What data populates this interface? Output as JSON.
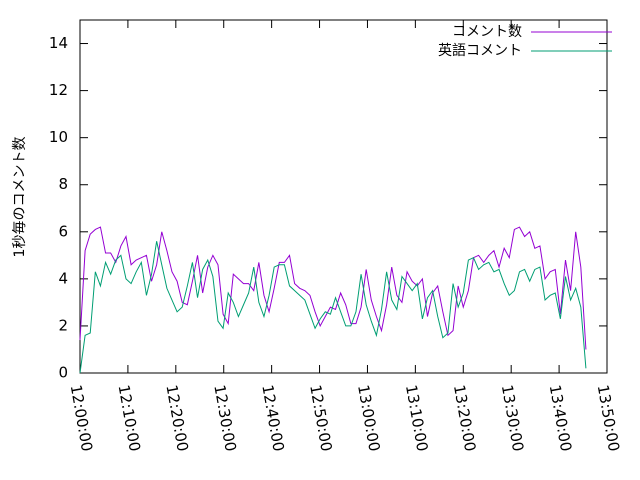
{
  "chart_data": {
    "type": "line",
    "y_label": "1秒毎のコメント数",
    "x": [
      "12:00:00",
      "12:01:04",
      "12:02:08",
      "12:03:12",
      "12:04:16",
      "12:05:20",
      "12:06:24",
      "12:07:28",
      "12:08:32",
      "12:09:36",
      "12:10:40",
      "12:11:44",
      "12:12:48",
      "12:13:52",
      "12:14:56",
      "12:16:00",
      "12:17:04",
      "12:18:08",
      "12:19:12",
      "12:20:16",
      "12:21:20",
      "12:22:24",
      "12:23:28",
      "12:24:32",
      "12:25:36",
      "12:26:40",
      "12:27:44",
      "12:28:48",
      "12:29:52",
      "12:30:56",
      "12:32:00",
      "12:33:04",
      "12:34:08",
      "12:35:12",
      "12:36:16",
      "12:37:20",
      "12:38:24",
      "12:39:28",
      "12:40:32",
      "12:41:36",
      "12:42:40",
      "12:43:44",
      "12:44:48",
      "12:45:52",
      "12:46:56",
      "12:48:00",
      "12:49:04",
      "12:50:08",
      "12:51:12",
      "12:52:16",
      "12:53:20",
      "12:54:24",
      "12:55:28",
      "12:56:32",
      "12:57:36",
      "12:58:40",
      "12:59:44",
      "13:00:48",
      "13:01:52",
      "13:02:56",
      "13:04:00",
      "13:05:04",
      "13:06:08",
      "13:07:12",
      "13:08:16",
      "13:09:20",
      "13:10:24",
      "13:11:28",
      "13:12:32",
      "13:13:36",
      "13:14:40",
      "13:15:44",
      "13:16:48",
      "13:17:52",
      "13:18:56",
      "13:20:00",
      "13:21:04",
      "13:22:08",
      "13:23:12",
      "13:24:16",
      "13:25:20",
      "13:26:24",
      "13:27:28",
      "13:28:32",
      "13:29:36",
      "13:30:40",
      "13:31:44",
      "13:32:48",
      "13:33:52",
      "13:34:56",
      "13:36:00",
      "13:37:04",
      "13:38:08",
      "13:39:12",
      "13:40:16",
      "13:41:20",
      "13:42:24",
      "13:43:28",
      "13:44:32",
      "13:45:36"
    ],
    "series": [
      {
        "name": "コメント数",
        "color": "#9400d3",
        "values": [
          1.4,
          5.2,
          5.9,
          6.1,
          6.2,
          5.1,
          5.1,
          4.7,
          5.4,
          5.8,
          4.6,
          4.8,
          4.9,
          5.0,
          3.9,
          4.6,
          6.0,
          5.2,
          4.3,
          3.9,
          3.0,
          2.9,
          3.9,
          5.0,
          3.4,
          4.5,
          5.0,
          4.6,
          2.5,
          2.1,
          4.2,
          4.0,
          3.8,
          3.8,
          3.5,
          4.7,
          3.3,
          2.6,
          3.6,
          4.7,
          4.7,
          5.0,
          3.8,
          3.6,
          3.5,
          3.3,
          2.6,
          2.0,
          2.4,
          2.8,
          2.7,
          3.4,
          2.9,
          2.1,
          2.1,
          2.8,
          4.4,
          3.1,
          2.4,
          1.8,
          2.9,
          4.5,
          3.3,
          3.0,
          4.3,
          3.9,
          3.7,
          4.0,
          2.4,
          3.4,
          3.7,
          2.6,
          1.6,
          1.8,
          3.7,
          2.8,
          3.5,
          4.9,
          5.0,
          4.7,
          5.0,
          5.2,
          4.5,
          5.3,
          4.9,
          6.1,
          6.2,
          5.8,
          6.0,
          5.3,
          5.4,
          4.0,
          4.3,
          4.4,
          2.5,
          4.8,
          3.5,
          6.0,
          4.5,
          1.0
        ]
      },
      {
        "name": "英語コメント",
        "color": "#009e73",
        "values": [
          0,
          1.6,
          1.7,
          4.3,
          3.7,
          4.7,
          4.2,
          4.8,
          5.0,
          4.0,
          3.8,
          4.3,
          4.7,
          3.3,
          4.2,
          5.6,
          4.6,
          3.6,
          3.1,
          2.6,
          2.8,
          3.7,
          4.7,
          3.2,
          4.4,
          4.8,
          4.1,
          2.2,
          1.9,
          3.4,
          3.0,
          2.4,
          2.9,
          3.4,
          4.5,
          3.0,
          2.4,
          3.3,
          4.5,
          4.6,
          4.6,
          3.7,
          3.5,
          3.3,
          3.1,
          2.5,
          1.9,
          2.3,
          2.6,
          2.5,
          3.2,
          2.6,
          2.0,
          2.0,
          2.6,
          4.2,
          2.9,
          2.2,
          1.6,
          2.7,
          4.3,
          3.1,
          2.7,
          4.1,
          3.8,
          3.5,
          3.8,
          2.3,
          3.2,
          3.5,
          2.4,
          1.5,
          1.7,
          3.8,
          2.8,
          3.4,
          4.8,
          4.9,
          4.4,
          4.6,
          4.7,
          4.3,
          4.4,
          3.8,
          3.3,
          3.5,
          4.3,
          4.4,
          3.9,
          4.4,
          4.5,
          3.1,
          3.3,
          3.4,
          2.3,
          4.1,
          3.1,
          3.6,
          2.8,
          0.2
        ]
      }
    ],
    "xlim": [
      "12:00:00",
      "13:50:00"
    ],
    "xticks": [
      "12:00:00",
      "12:10:00",
      "12:20:00",
      "12:30:00",
      "12:40:00",
      "12:50:00",
      "13:00:00",
      "13:10:00",
      "13:20:00",
      "13:30:00",
      "13:40:00",
      "13:50:00"
    ],
    "ylim": [
      0,
      15
    ],
    "yticks": [
      0,
      2,
      4,
      6,
      8,
      10,
      12,
      14
    ],
    "legend": "top-right"
  }
}
